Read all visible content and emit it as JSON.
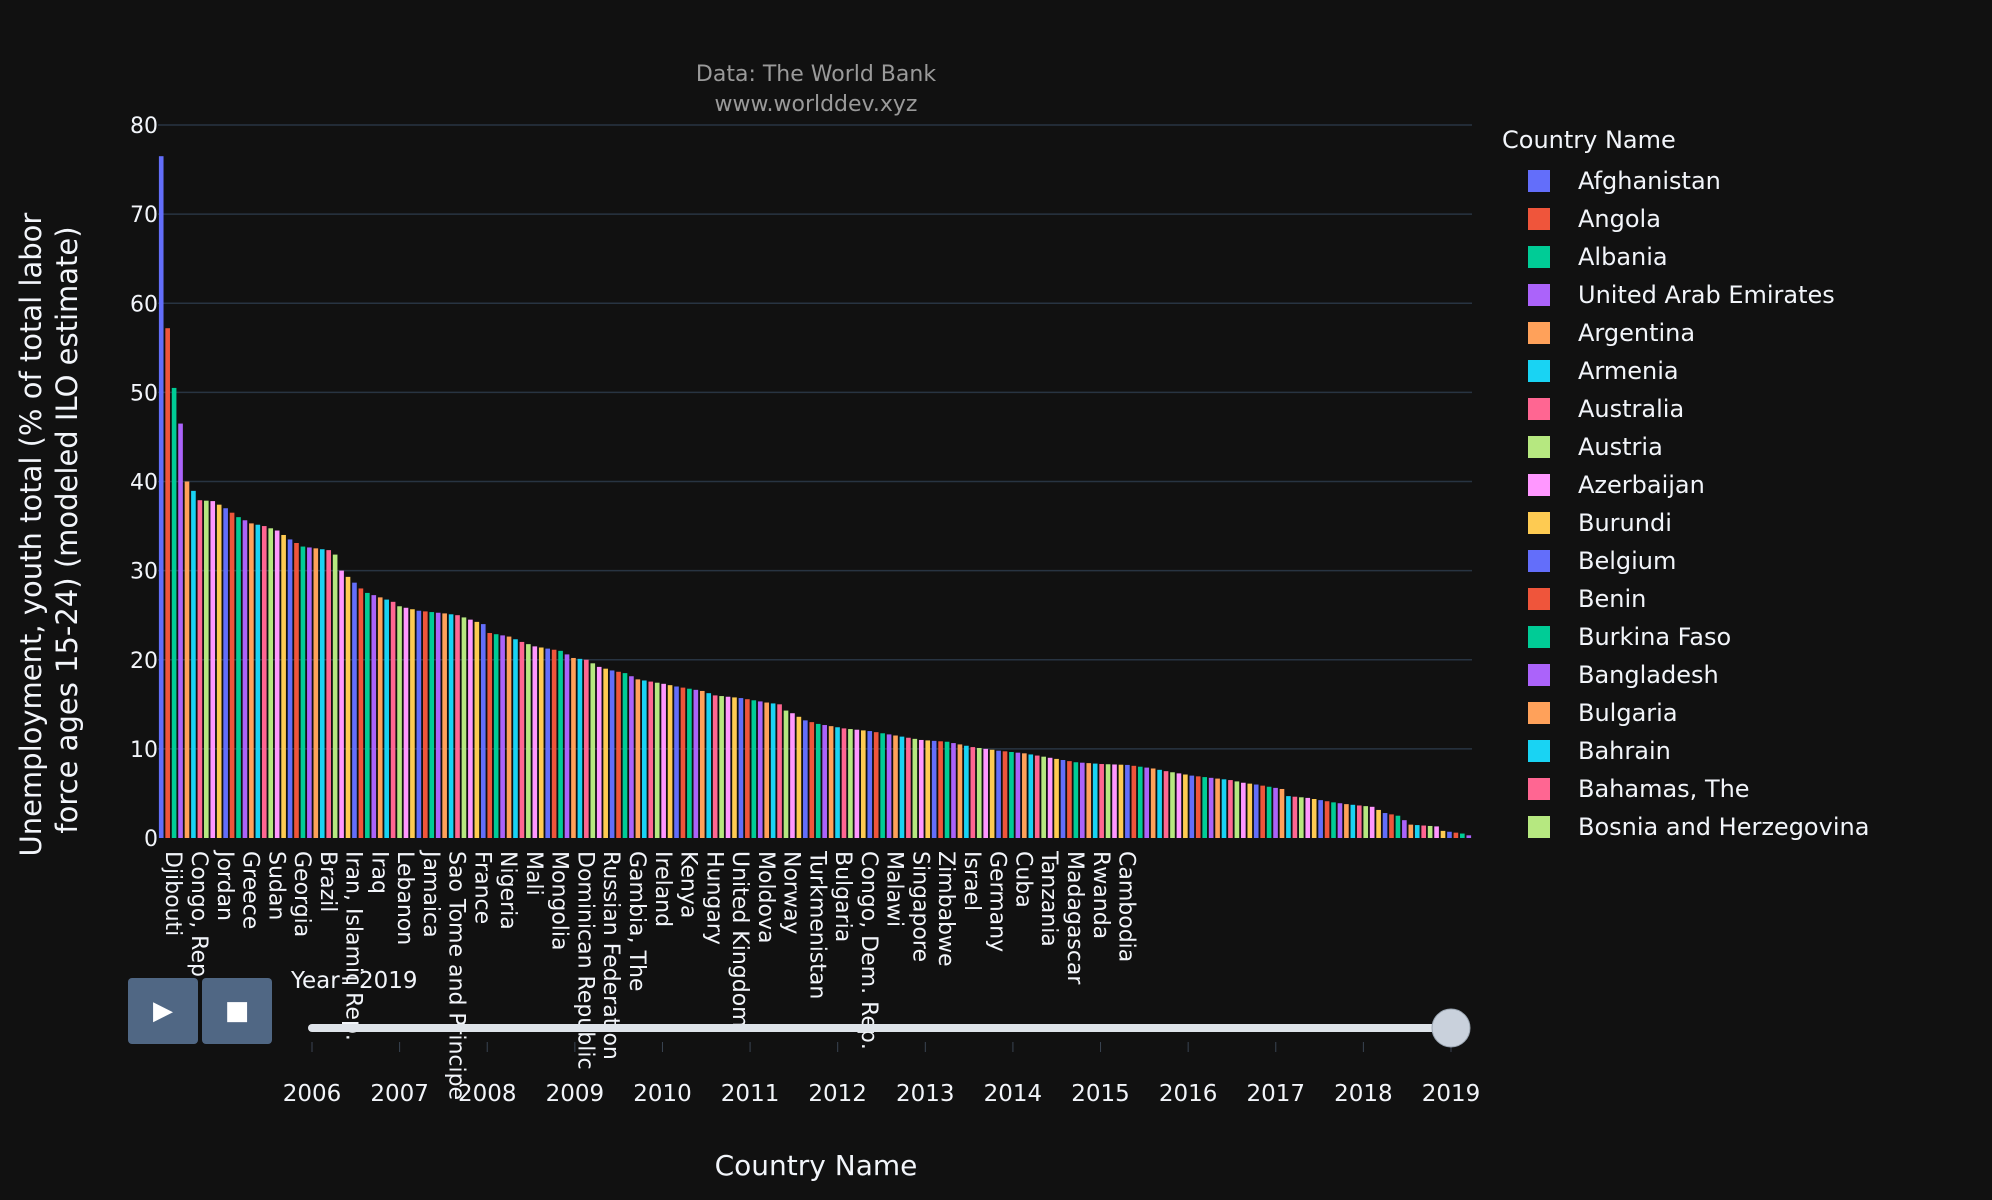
{
  "chart_data": {
    "type": "bar",
    "title": "Data: The World Bank",
    "subtitle": "www.worlddev.xyz",
    "xlabel": "Country Name",
    "ylabel": "Unemployment, youth total (% of total labor force ages 15-24) (modeled ILO estimate)",
    "ylabel_lines": [
      "Unemployment, youth total (% of total labor",
      "force ages 15-24) (modeled ILO estimate)"
    ],
    "ylim": [
      0,
      80
    ],
    "yticks": [
      0,
      10,
      20,
      30,
      40,
      50,
      60,
      70,
      80
    ],
    "grid": true,
    "legend_placement": "right",
    "x_tick_labels": [
      "Djibouti",
      "Congo, Rep.",
      "Jordan",
      "Greece",
      "Sudan",
      "Georgia",
      "Brazil",
      "Iran, Islamic Rep.",
      "Iraq",
      "Lebanon",
      "Jamaica",
      "Sao Tome and Principe",
      "France",
      "Nigeria",
      "Mali",
      "Mongolia",
      "Dominican Republic",
      "Russian Federation",
      "Gambia, The",
      "Ireland",
      "Kenya",
      "Hungary",
      "United Kingdom",
      "Moldova",
      "Norway",
      "Turkmenistan",
      "Bulgaria",
      "Congo, Dem. Rep.",
      "Malawi",
      "Singapore",
      "Zimbabwe",
      "Israel",
      "Germany",
      "Cuba",
      "Tanzania",
      "Madagascar",
      "Rwanda",
      "Cambodia"
    ],
    "tick_every": 4,
    "value_anchors": [
      [
        0,
        76.5
      ],
      [
        1,
        57.2
      ],
      [
        2,
        50.5
      ],
      [
        3,
        46.5
      ],
      [
        4,
        40
      ],
      [
        6,
        37.9
      ],
      [
        8,
        37.8
      ],
      [
        10,
        37
      ],
      [
        12,
        36
      ],
      [
        14,
        35.3
      ],
      [
        16,
        35
      ],
      [
        18,
        34.5
      ],
      [
        20,
        33.5
      ],
      [
        22,
        32.7
      ],
      [
        24,
        32.5
      ],
      [
        26,
        32.3
      ],
      [
        27,
        31.8
      ],
      [
        28,
        30
      ],
      [
        29,
        29.3
      ],
      [
        31,
        28
      ],
      [
        32,
        27.5
      ],
      [
        34,
        27
      ],
      [
        36,
        26.5
      ],
      [
        37,
        26
      ],
      [
        40,
        25.5
      ],
      [
        44,
        25.2
      ],
      [
        46,
        25
      ],
      [
        48,
        24.5
      ],
      [
        50,
        24
      ],
      [
        51,
        23
      ],
      [
        54,
        22.6
      ],
      [
        56,
        22
      ],
      [
        58,
        21.5
      ],
      [
        62,
        21
      ],
      [
        64,
        20.2
      ],
      [
        66,
        20
      ],
      [
        68,
        19.2
      ],
      [
        70,
        18.8
      ],
      [
        72,
        18.5
      ],
      [
        74,
        17.8
      ],
      [
        78,
        17.3
      ],
      [
        80,
        17
      ],
      [
        84,
        16.5
      ],
      [
        86,
        16
      ],
      [
        90,
        15.7
      ],
      [
        94,
        15.2
      ],
      [
        96,
        15
      ],
      [
        97,
        14.3
      ],
      [
        98,
        14
      ],
      [
        100,
        13.2
      ],
      [
        102,
        12.8
      ],
      [
        106,
        12.3
      ],
      [
        110,
        12
      ],
      [
        114,
        11.5
      ],
      [
        118,
        11
      ],
      [
        122,
        10.8
      ],
      [
        124,
        10.5
      ],
      [
        126,
        10.2
      ],
      [
        130,
        9.8
      ],
      [
        134,
        9.5
      ],
      [
        138,
        9
      ],
      [
        142,
        8.5
      ],
      [
        146,
        8.3
      ],
      [
        150,
        8.2
      ],
      [
        154,
        7.8
      ],
      [
        156,
        7.5
      ],
      [
        160,
        7
      ],
      [
        166,
        6.5
      ],
      [
        168,
        6.2
      ],
      [
        170,
        6
      ],
      [
        174,
        5.5
      ],
      [
        175,
        4.7
      ],
      [
        178,
        4.5
      ],
      [
        182,
        4
      ],
      [
        184,
        3.8
      ],
      [
        188,
        3.5
      ],
      [
        190,
        2.8
      ],
      [
        192,
        2.5
      ],
      [
        194,
        1.5
      ],
      [
        198,
        1.3
      ],
      [
        199,
        0.8
      ],
      [
        202,
        0.5
      ],
      [
        203,
        0.3
      ]
    ],
    "bar_count": 204,
    "colorway": [
      "#636efa",
      "#EF553B",
      "#00cc96",
      "#ab63fa",
      "#FFA15A",
      "#19d3f3",
      "#FF6692",
      "#B6E880",
      "#FF97FF",
      "#FECB52"
    ],
    "legend_title": "Country Name",
    "legend": [
      {
        "name": "Afghanistan",
        "color": "#636efa"
      },
      {
        "name": "Angola",
        "color": "#EF553B"
      },
      {
        "name": "Albania",
        "color": "#00cc96"
      },
      {
        "name": "United Arab Emirates",
        "color": "#ab63fa"
      },
      {
        "name": "Argentina",
        "color": "#FFA15A"
      },
      {
        "name": "Armenia",
        "color": "#19d3f3"
      },
      {
        "name": "Australia",
        "color": "#FF6692"
      },
      {
        "name": "Austria",
        "color": "#B6E880"
      },
      {
        "name": "Azerbaijan",
        "color": "#FF97FF"
      },
      {
        "name": "Burundi",
        "color": "#FECB52"
      },
      {
        "name": "Belgium",
        "color": "#636efa"
      },
      {
        "name": "Benin",
        "color": "#EF553B"
      },
      {
        "name": "Burkina Faso",
        "color": "#00cc96"
      },
      {
        "name": "Bangladesh",
        "color": "#ab63fa"
      },
      {
        "name": "Bulgaria",
        "color": "#FFA15A"
      },
      {
        "name": "Bahrain",
        "color": "#19d3f3"
      },
      {
        "name": "Bahamas, The",
        "color": "#FF6692"
      },
      {
        "name": "Bosnia and Herzegovina",
        "color": "#B6E880"
      }
    ]
  },
  "slider": {
    "current_label": "Year=2019",
    "years": [
      "2006",
      "2007",
      "2008",
      "2009",
      "2010",
      "2011",
      "2012",
      "2013",
      "2014",
      "2015",
      "2016",
      "2017",
      "2018",
      "2019"
    ],
    "current_index": 13
  },
  "controls": {
    "play_label": "▶",
    "stop_label": "■"
  },
  "colors": {
    "background": "#111111",
    "grid": "#283442",
    "text": "#f2f5fa",
    "title": "#9a9a9a",
    "button": "#506784",
    "slider_rail": "#dfe4ea",
    "slider_handle": "#c9d1dc"
  }
}
